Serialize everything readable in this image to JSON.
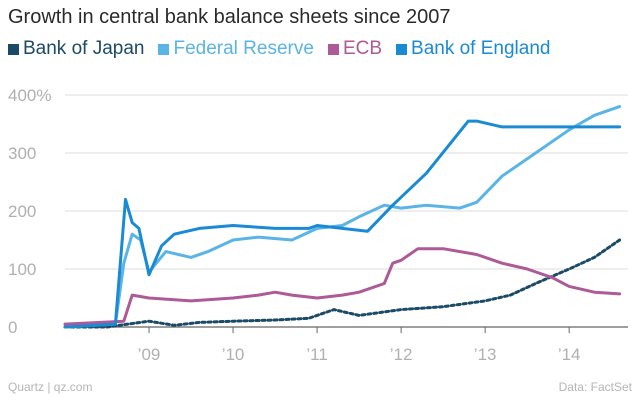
{
  "header": {
    "title": "Growth in central bank balance sheets since 2007"
  },
  "footer": {
    "source_left": "Quartz | qz.com",
    "source_right": "Data: FactSet"
  },
  "chart_data": {
    "type": "line",
    "title": "Growth in central bank balance sheets since 2007",
    "xlabel": "",
    "ylabel": "",
    "ylim": [
      0,
      400
    ],
    "xlim": [
      2008.0,
      2014.7
    ],
    "grid": true,
    "legend_position": "top",
    "y_ticks": [
      {
        "value": 0,
        "label": "0"
      },
      {
        "value": 100,
        "label": "100"
      },
      {
        "value": 200,
        "label": "200"
      },
      {
        "value": 300,
        "label": "300"
      },
      {
        "value": 400,
        "label": "400%"
      }
    ],
    "x_ticks": [
      {
        "value": 2009,
        "label": "’09"
      },
      {
        "value": 2010,
        "label": "’10"
      },
      {
        "value": 2011,
        "label": "’11"
      },
      {
        "value": 2012,
        "label": "’12"
      },
      {
        "value": 2013,
        "label": "’13"
      },
      {
        "value": 2014,
        "label": "’14"
      }
    ],
    "series": [
      {
        "name": "Bank of Japan",
        "color": "#1b4a66",
        "dashed": true,
        "x": [
          2008.0,
          2008.5,
          2008.75,
          2009.0,
          2009.3,
          2009.6,
          2010.0,
          2010.5,
          2010.9,
          2011.2,
          2011.5,
          2012.0,
          2012.5,
          2013.0,
          2013.3,
          2013.6,
          2014.0,
          2014.3,
          2014.6
        ],
        "y": [
          0,
          0,
          5,
          10,
          3,
          8,
          10,
          12,
          15,
          30,
          20,
          30,
          35,
          45,
          55,
          75,
          100,
          120,
          150
        ]
      },
      {
        "name": "Federal Reserve",
        "color": "#5ab4e5",
        "dashed": false,
        "x": [
          2008.0,
          2008.6,
          2008.7,
          2008.8,
          2008.9,
          2009.0,
          2009.2,
          2009.5,
          2009.7,
          2010.0,
          2010.3,
          2010.7,
          2011.0,
          2011.3,
          2011.5,
          2011.8,
          2012.0,
          2012.3,
          2012.7,
          2012.9,
          2013.2,
          2013.6,
          2014.0,
          2014.3,
          2014.6
        ],
        "y": [
          0,
          5,
          110,
          160,
          150,
          95,
          130,
          120,
          130,
          150,
          155,
          150,
          170,
          175,
          190,
          210,
          205,
          210,
          205,
          215,
          260,
          300,
          340,
          365,
          380
        ]
      },
      {
        "name": "ECB",
        "color": "#ad5a97",
        "dashed": false,
        "x": [
          2008.0,
          2008.7,
          2008.8,
          2009.0,
          2009.5,
          2010.0,
          2010.3,
          2010.5,
          2010.7,
          2011.0,
          2011.3,
          2011.5,
          2011.8,
          2011.9,
          2012.0,
          2012.2,
          2012.5,
          2012.9,
          2013.2,
          2013.5,
          2013.8,
          2014.0,
          2014.3,
          2014.6
        ],
        "y": [
          5,
          10,
          55,
          50,
          45,
          50,
          55,
          60,
          55,
          50,
          55,
          60,
          75,
          110,
          115,
          135,
          135,
          125,
          110,
          100,
          85,
          70,
          60,
          57
        ]
      },
      {
        "name": "Bank of England",
        "color": "#1b8ad4",
        "dashed": false,
        "x": [
          2008.0,
          2008.6,
          2008.72,
          2008.8,
          2008.88,
          2009.0,
          2009.15,
          2009.3,
          2009.6,
          2010.0,
          2010.5,
          2010.9,
          2011.0,
          2011.3,
          2011.6,
          2011.9,
          2012.3,
          2012.8,
          2012.9,
          2013.2,
          2013.6,
          2014.0,
          2014.3,
          2014.6
        ],
        "y": [
          0,
          5,
          220,
          180,
          170,
          90,
          140,
          160,
          170,
          175,
          170,
          170,
          175,
          170,
          165,
          210,
          265,
          355,
          355,
          345,
          345,
          345,
          345,
          345
        ]
      }
    ]
  }
}
